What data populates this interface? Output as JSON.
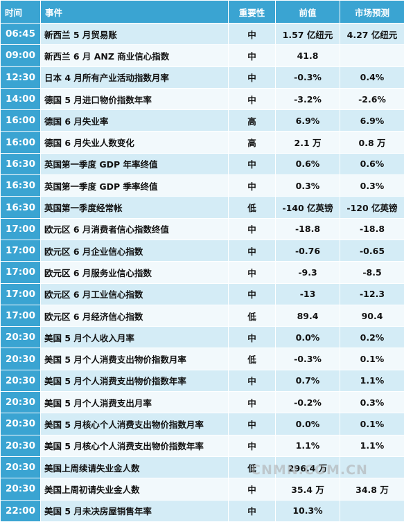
{
  "header": {
    "time": "时间",
    "event": "事件",
    "importance": "重要性",
    "previous": "前值",
    "forecast": "市场预测"
  },
  "colors": {
    "header_bg": "#3aa4d2",
    "row_odd": "#d4ecf6",
    "row_even": "#f2f9fc",
    "importance_mid": "#1b3fa8",
    "importance_high": "#c0141c",
    "importance_low": "#2a9a2a"
  },
  "rows": [
    {
      "time": "06:45",
      "event": "新西兰 5 月贸易账",
      "importance": "中",
      "level": "mid",
      "previous": "1.57 亿纽元",
      "forecast": "4.27 亿纽元"
    },
    {
      "time": "09:00",
      "event": "新西兰 6 月 ANZ 商业信心指数",
      "importance": "中",
      "level": "mid",
      "previous": "41.8",
      "forecast": ""
    },
    {
      "time": "12:30",
      "event": "日本 4 月所有产业活动指数月率",
      "importance": "中",
      "level": "mid",
      "previous": "-0.3%",
      "forecast": "0.4%"
    },
    {
      "time": "14:00",
      "event": "德国 5 月进口物价指数年率",
      "importance": "中",
      "level": "mid",
      "previous": "-3.2%",
      "forecast": "-2.6%"
    },
    {
      "time": "16:00",
      "event": "德国 6 月失业率",
      "importance": "高",
      "level": "high",
      "previous": "6.9%",
      "forecast": "6.9%"
    },
    {
      "time": "16:00",
      "event": "德国 6 月失业人数变化",
      "importance": "高",
      "level": "high",
      "previous": "2.1 万",
      "forecast": "0.8 万"
    },
    {
      "time": "16:30",
      "event": "英国第一季度 GDP 年率终值",
      "importance": "中",
      "level": "mid",
      "previous": "0.6%",
      "forecast": "0.6%"
    },
    {
      "time": "16:30",
      "event": "英国第一季度 GDP 季率终值",
      "importance": "中",
      "level": "mid",
      "previous": "0.3%",
      "forecast": "0.3%"
    },
    {
      "time": "16:30",
      "event": "英国第一季度经常帐",
      "importance": "低",
      "level": "low",
      "previous": "-140 亿英镑",
      "forecast": "-120 亿英镑"
    },
    {
      "time": "17:00",
      "event": "欧元区 6 月消费者信心指数终值",
      "importance": "中",
      "level": "mid",
      "previous": "-18.8",
      "forecast": "-18.8"
    },
    {
      "time": "17:00",
      "event": "欧元区 6 月企业信心指数",
      "importance": "中",
      "level": "mid",
      "previous": "-0.76",
      "forecast": "-0.65"
    },
    {
      "time": "17:00",
      "event": "欧元区 6 月服务业信心指数",
      "importance": "中",
      "level": "mid",
      "previous": "-9.3",
      "forecast": "-8.5"
    },
    {
      "time": "17:00",
      "event": "欧元区 6 月工业信心指数",
      "importance": "中",
      "level": "mid",
      "previous": "-13",
      "forecast": "-12.3"
    },
    {
      "time": "17:00",
      "event": "欧元区 6 月经济信心指数",
      "importance": "低",
      "level": "low",
      "previous": "89.4",
      "forecast": "90.4"
    },
    {
      "time": "20:30",
      "event": "美国 5 月个人收入月率",
      "importance": "中",
      "level": "mid",
      "previous": "0.0%",
      "forecast": "0.2%"
    },
    {
      "time": "20:30",
      "event": "美国 5 月个人消费支出物价指数月率",
      "importance": "低",
      "level": "low",
      "previous": "-0.3%",
      "forecast": "0.1%"
    },
    {
      "time": "20:30",
      "event": "美国 5 月个人消费支出物价指数年率",
      "importance": "中",
      "level": "mid",
      "previous": "0.7%",
      "forecast": "1.1%"
    },
    {
      "time": "20:30",
      "event": "美国 5 月个人消费支出月率",
      "importance": "中",
      "level": "mid",
      "previous": "-0.2%",
      "forecast": "0.3%"
    },
    {
      "time": "20:30",
      "event": "美国 5 月核心个人消费支出物价指数月率",
      "importance": "中",
      "level": "mid",
      "previous": "0.0%",
      "forecast": "0.1%"
    },
    {
      "time": "20:30",
      "event": "美国 5 月核心个人消费支出物价指数年率",
      "importance": "中",
      "level": "mid",
      "previous": "1.1%",
      "forecast": "1.1%"
    },
    {
      "time": "20:30",
      "event": "美国上周续请失业金人数",
      "importance": "低",
      "level": "low",
      "previous": "296.4 万",
      "forecast": ""
    },
    {
      "time": "20:30",
      "event": "美国上周初请失业金人数",
      "importance": "中",
      "level": "mid",
      "previous": "35.4 万",
      "forecast": "34.8 万"
    },
    {
      "time": "22:00",
      "event": "美国 5 月未决房屋销售年率",
      "importance": "中",
      "level": "mid",
      "previous": "10.3%",
      "forecast": ""
    }
  ],
  "watermark": "CNMN.COM.CN"
}
